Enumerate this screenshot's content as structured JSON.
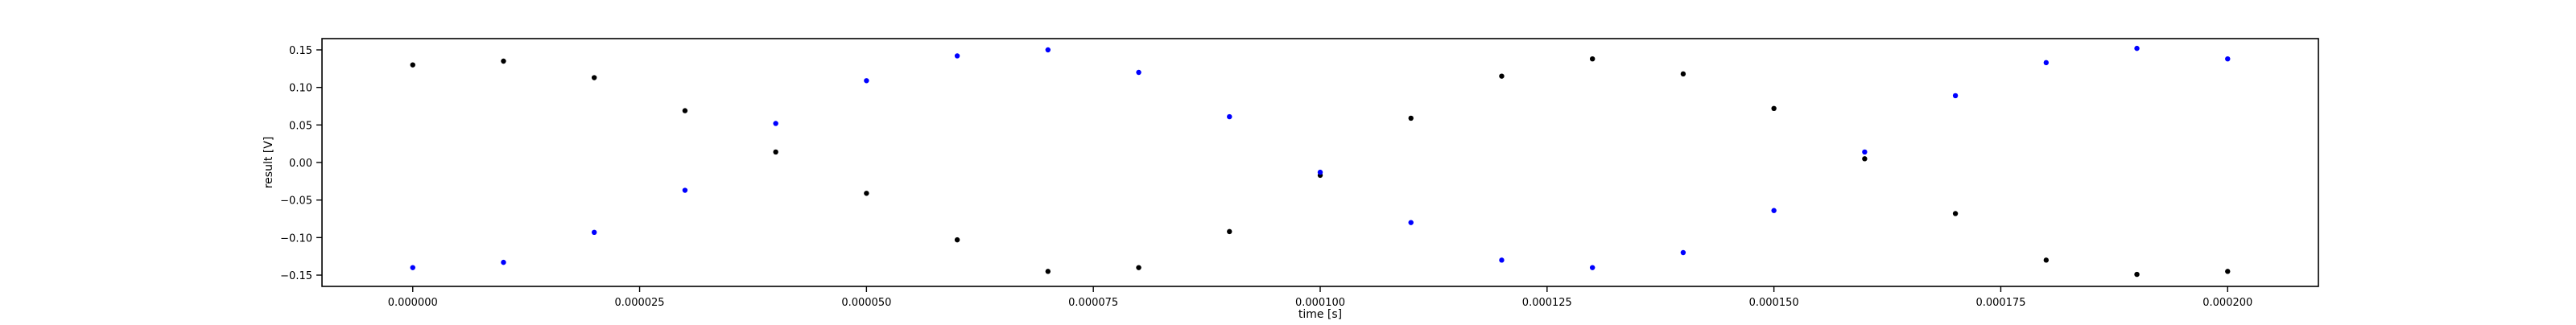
{
  "chart_data": {
    "type": "scatter",
    "title": "",
    "xlabel": "time [s]",
    "ylabel": "result [V]",
    "xlim": [
      -1e-05,
      0.00021
    ],
    "ylim": [
      -0.165,
      0.165
    ],
    "grid": false,
    "legend": "none",
    "xticks": [
      0.0,
      2.5e-05,
      5e-05,
      7.5e-05,
      0.0001,
      0.000125,
      0.00015,
      0.000175,
      0.0002
    ],
    "xtick_labels": [
      "0.000000",
      "0.000025",
      "0.000050",
      "0.000075",
      "0.000100",
      "0.000125",
      "0.000150",
      "0.000175",
      "0.000200"
    ],
    "yticks": [
      -0.15,
      -0.1,
      -0.05,
      0.0,
      0.05,
      0.1,
      0.15
    ],
    "ytick_labels": [
      "−0.15",
      "−0.10",
      "−0.05",
      "0.00",
      "0.05",
      "0.10",
      "0.15"
    ],
    "series": [
      {
        "color": "#000000",
        "x": [
          0.0,
          1e-05,
          2e-05,
          3e-05,
          4e-05,
          5e-05,
          6e-05,
          7e-05,
          8e-05,
          9e-05,
          0.0001,
          0.00011,
          0.00012,
          0.00013,
          0.00014,
          0.00015,
          0.00016,
          0.00017,
          0.00018,
          0.00019,
          0.0002
        ],
        "y": [
          0.13,
          0.135,
          0.113,
          0.069,
          0.014,
          -0.041,
          -0.103,
          -0.145,
          -0.14,
          -0.092,
          -0.017,
          0.059,
          0.115,
          0.138,
          0.118,
          0.072,
          0.005,
          -0.068,
          -0.13,
          -0.149,
          -0.145
        ]
      },
      {
        "color": "#0000ff",
        "x": [
          0.0,
          1e-05,
          2e-05,
          3e-05,
          4e-05,
          5e-05,
          6e-05,
          7e-05,
          8e-05,
          9e-05,
          0.0001,
          0.00011,
          0.00012,
          0.00013,
          0.00014,
          0.00015,
          0.00016,
          0.00017,
          0.00018,
          0.00019,
          0.0002
        ],
        "y": [
          -0.14,
          -0.133,
          -0.093,
          -0.037,
          0.052,
          0.109,
          0.142,
          0.15,
          0.12,
          0.061,
          -0.013,
          -0.08,
          -0.13,
          -0.14,
          -0.12,
          -0.064,
          0.014,
          0.089,
          0.133,
          0.152,
          0.138
        ]
      }
    ]
  }
}
